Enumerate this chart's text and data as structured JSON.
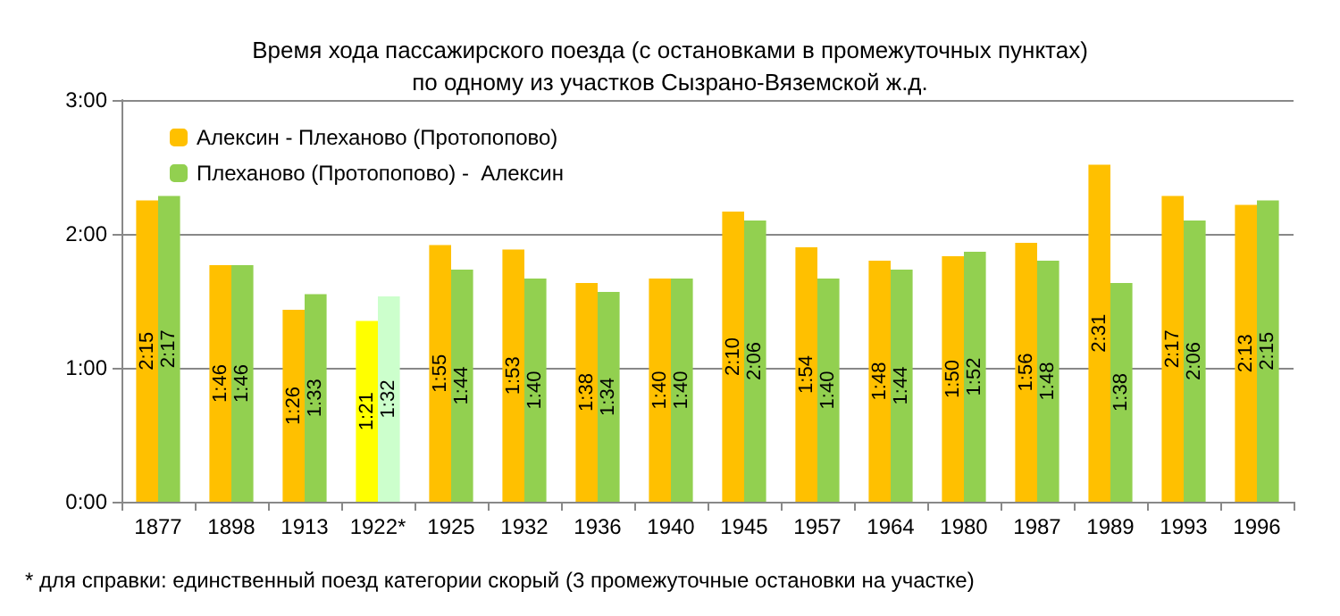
{
  "chart_data": {
    "type": "bar",
    "title": "Время хода пассажирского поезда (с остановками в промежуточных пунктах)\nпо одному из участков Сызрано-Вяземской ж.д.",
    "categories": [
      "1877",
      "1898",
      "1913",
      "1922*",
      "1925",
      "1932",
      "1936",
      "1940",
      "1945",
      "1957",
      "1964",
      "1980",
      "1987",
      "1989",
      "1993",
      "1996"
    ],
    "series": [
      {
        "name": "Алексин - Плеханово (Протопопово)",
        "color": "#ffc000",
        "colors": [
          "#ffc000",
          "#ffc000",
          "#ffc000",
          "#ffff00",
          "#ffc000",
          "#ffc000",
          "#ffc000",
          "#ffc000",
          "#ffc000",
          "#ffc000",
          "#ffc000",
          "#ffc000",
          "#ffc000",
          "#ffc000",
          "#ffc000",
          "#ffc000"
        ],
        "values": [
          135,
          106,
          86,
          81,
          115,
          113,
          98,
          100,
          130,
          114,
          108,
          110,
          116,
          151,
          137,
          133
        ],
        "value_labels": [
          "2:15",
          "1:46",
          "1:26",
          "1:21",
          "1:55",
          "1:53",
          "1:38",
          "1:40",
          "2:10",
          "1:54",
          "1:48",
          "1:50",
          "1:56",
          "2:31",
          "2:17",
          "2:13"
        ]
      },
      {
        "name": "Плеханово (Протопопово) -  Алексин",
        "color": "#92d050",
        "colors": [
          "#92d050",
          "#92d050",
          "#92d050",
          "#ccffcc",
          "#92d050",
          "#92d050",
          "#92d050",
          "#92d050",
          "#92d050",
          "#92d050",
          "#92d050",
          "#92d050",
          "#92d050",
          "#92d050",
          "#92d050",
          "#92d050"
        ],
        "values": [
          137,
          106,
          93,
          92,
          104,
          100,
          94,
          100,
          126,
          100,
          104,
          112,
          108,
          98,
          126,
          135
        ],
        "value_labels": [
          "2:17",
          "1:46",
          "1:33",
          "1:32",
          "1:44",
          "1:40",
          "1:34",
          "1:40",
          "2:06",
          "1:40",
          "1:44",
          "1:52",
          "1:48",
          "1:38",
          "2:06",
          "2:15"
        ]
      }
    ],
    "ylim": [
      0,
      180
    ],
    "yticks": [
      {
        "value": 0,
        "label": "0:00"
      },
      {
        "value": 60,
        "label": "1:00"
      },
      {
        "value": 120,
        "label": "2:00"
      },
      {
        "value": 180,
        "label": "3:00"
      }
    ],
    "grid": "y",
    "legend": "top left",
    "annotations": [
      "* для справки: единственный поезд категории скорый (3 промежуточные остановки на участке)"
    ]
  }
}
